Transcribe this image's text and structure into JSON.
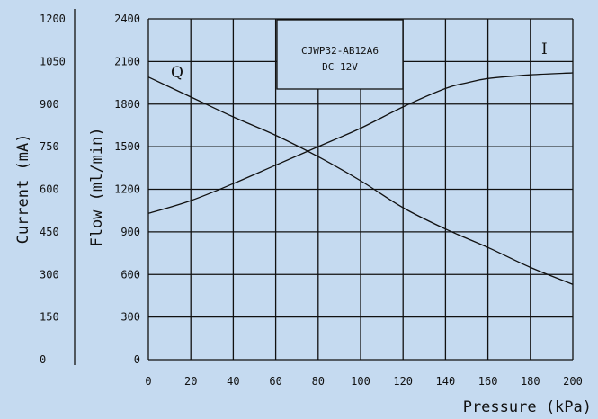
{
  "chart_data": {
    "type": "line",
    "x": [
      0,
      20,
      40,
      60,
      80,
      100,
      120,
      140,
      160,
      180,
      200
    ],
    "x_ticks": [
      "0",
      "20",
      "40",
      "60",
      "80",
      "100",
      "120",
      "140",
      "160",
      "180",
      "200"
    ],
    "xlabel": "Pressure (kPa)",
    "xlim": [
      0,
      200
    ],
    "flow_axis": {
      "label": "Flow (ml/min)",
      "ticks": [
        "0",
        "300",
        "600",
        "900",
        "1200",
        "1500",
        "1800",
        "2100",
        "2400"
      ],
      "lim": [
        0,
        2400
      ]
    },
    "current_axis": {
      "label": "Current (mA)",
      "ticks": [
        "0",
        "150",
        "300",
        "450",
        "600",
        "750",
        "900",
        "1050",
        "1200"
      ],
      "lim": [
        0,
        1200
      ]
    },
    "series": [
      {
        "name": "Q",
        "axis": "flow",
        "x": [
          0,
          20,
          40,
          60,
          80,
          100,
          120,
          140,
          160,
          180,
          200
        ],
        "values": [
          1990,
          1850,
          1710,
          1580,
          1430,
          1260,
          1070,
          920,
          790,
          650,
          530
        ]
      },
      {
        "name": "I",
        "axis": "current",
        "x": [
          0,
          20,
          40,
          60,
          80,
          100,
          120,
          140,
          150,
          160,
          180,
          200
        ],
        "values": [
          515,
          560,
          620,
          685,
          750,
          815,
          890,
          955,
          975,
          990,
          1003,
          1010
        ]
      }
    ],
    "annotation": {
      "line1": "CJWP32-AB12A6",
      "line2": "DC 12V"
    },
    "grid": true,
    "background_color": "#c5daf0",
    "line_color": "#111111"
  }
}
